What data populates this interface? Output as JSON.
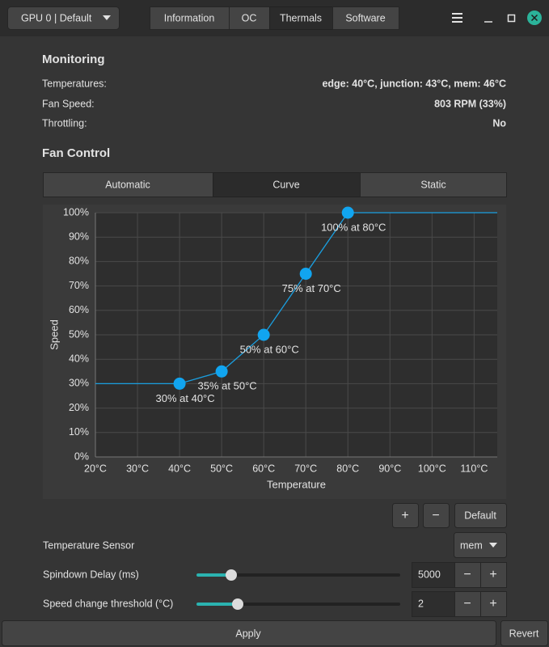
{
  "header": {
    "gpu_selector": "GPU 0 | Default",
    "tabs": [
      "Information",
      "OC",
      "Thermals",
      "Software"
    ]
  },
  "monitoring": {
    "title": "Monitoring",
    "rows": [
      {
        "label": "Temperatures:",
        "value": "edge: 40°C, junction: 43°C, mem: 46°C"
      },
      {
        "label": "Fan Speed:",
        "value": "803 RPM (33%)"
      },
      {
        "label": "Throttling:",
        "value": "No"
      }
    ]
  },
  "fan_control": {
    "title": "Fan Control",
    "modes": [
      "Automatic",
      "Curve",
      "Static"
    ],
    "buttons": [
      "+",
      "−",
      "Default"
    ],
    "temperature_sensor": {
      "label": "Temperature Sensor",
      "value": "mem"
    },
    "spindown_delay": {
      "label": "Spindown Delay (ms)",
      "value": "5000",
      "decrement": "−",
      "increment": "+"
    },
    "speed_change_threshold": {
      "label": "Speed change threshold (°C)",
      "value": "2",
      "decrement": "−",
      "increment": "+"
    }
  },
  "chart_data": {
    "type": "line",
    "xlabel": "Temperature",
    "ylabel": "Speed",
    "x": [
      40,
      50,
      60,
      70,
      80
    ],
    "values": [
      30,
      35,
      50,
      75,
      100
    ],
    "value_labels": [
      "30% at 40°C",
      "35% at 50°C",
      "50% at 60°C",
      "75% at 70°C",
      "100% at 80°C"
    ],
    "color": "#1a9fe0",
    "grid": true,
    "xlim": [
      20,
      115.5
    ],
    "ylim": [
      0,
      100
    ],
    "xticks": [
      {
        "value": 20,
        "label": "20°C"
      },
      {
        "value": 30,
        "label": "30°C"
      },
      {
        "value": 40,
        "label": "40°C"
      },
      {
        "value": 50,
        "label": "50°C"
      },
      {
        "value": 60,
        "label": "60°C"
      },
      {
        "value": 70,
        "label": "70°C"
      },
      {
        "value": 80,
        "label": "80°C"
      },
      {
        "value": 90,
        "label": "90°C"
      },
      {
        "value": 100,
        "label": "100°C"
      },
      {
        "value": 110,
        "label": "110°C"
      }
    ],
    "yticks": [
      {
        "value": 0,
        "label": "0%"
      },
      {
        "value": 10,
        "label": "10%"
      },
      {
        "value": 20,
        "label": "20%"
      },
      {
        "value": 30,
        "label": "30%"
      },
      {
        "value": 40,
        "label": "40%"
      },
      {
        "value": 50,
        "label": "50%"
      },
      {
        "value": 60,
        "label": "60%"
      },
      {
        "value": 70,
        "label": "70%"
      },
      {
        "value": 80,
        "label": "80%"
      },
      {
        "value": 90,
        "label": "90%"
      },
      {
        "value": 100,
        "label": "100%"
      }
    ]
  },
  "footer": {
    "apply": "Apply",
    "revert": "Revert"
  }
}
